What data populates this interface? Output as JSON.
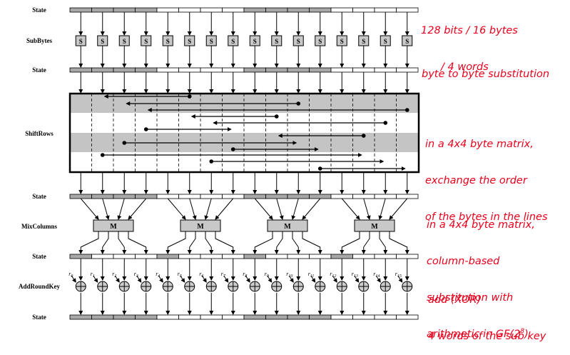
{
  "stages": {
    "state": "State",
    "subbytes": "SubBytes",
    "shiftrows": "ShiftRows",
    "mixcolumns": "MixColumns",
    "addroundkey": "AddRoundKey"
  },
  "sbox_letter": "S",
  "mixbox_letter": "M",
  "round_key_labels": [
    "r0",
    "r1",
    "r2",
    "r3",
    "r4",
    "r5",
    "r6",
    "r7",
    "r8",
    "r9",
    "r10",
    "r11",
    "r12",
    "r13",
    "r14",
    "r15"
  ],
  "notes": {
    "state_size_line1": "128 bits / 16 bytes",
    "state_size_line2": "/ 4 words",
    "subbytes": "byte to byte substitution",
    "shiftrows_line1": "in a 4x4 byte matrix,",
    "shiftrows_line2": "exchange the order",
    "shiftrows_line3": "of the bytes in the lines",
    "mixcolumns_line1": "in a 4x4 byte matrix,",
    "mixcolumns_line2": "column-based",
    "mixcolumns_line3": "substitution with",
    "mixcolumns_line4_prefix": "arithmetic in GF(2",
    "mixcolumns_line4_exp": "8",
    "mixcolumns_line4_suffix": ")",
    "addroundkey_line1": "add (XOR)",
    "addroundkey_line2": "4 words of the sub key"
  },
  "colors": {
    "annotation": "#e8001c",
    "shaded_cell": "#a8a8a8",
    "shiftrows_band": "#c4c4c4",
    "box_fill": "#c8c8c8"
  }
}
